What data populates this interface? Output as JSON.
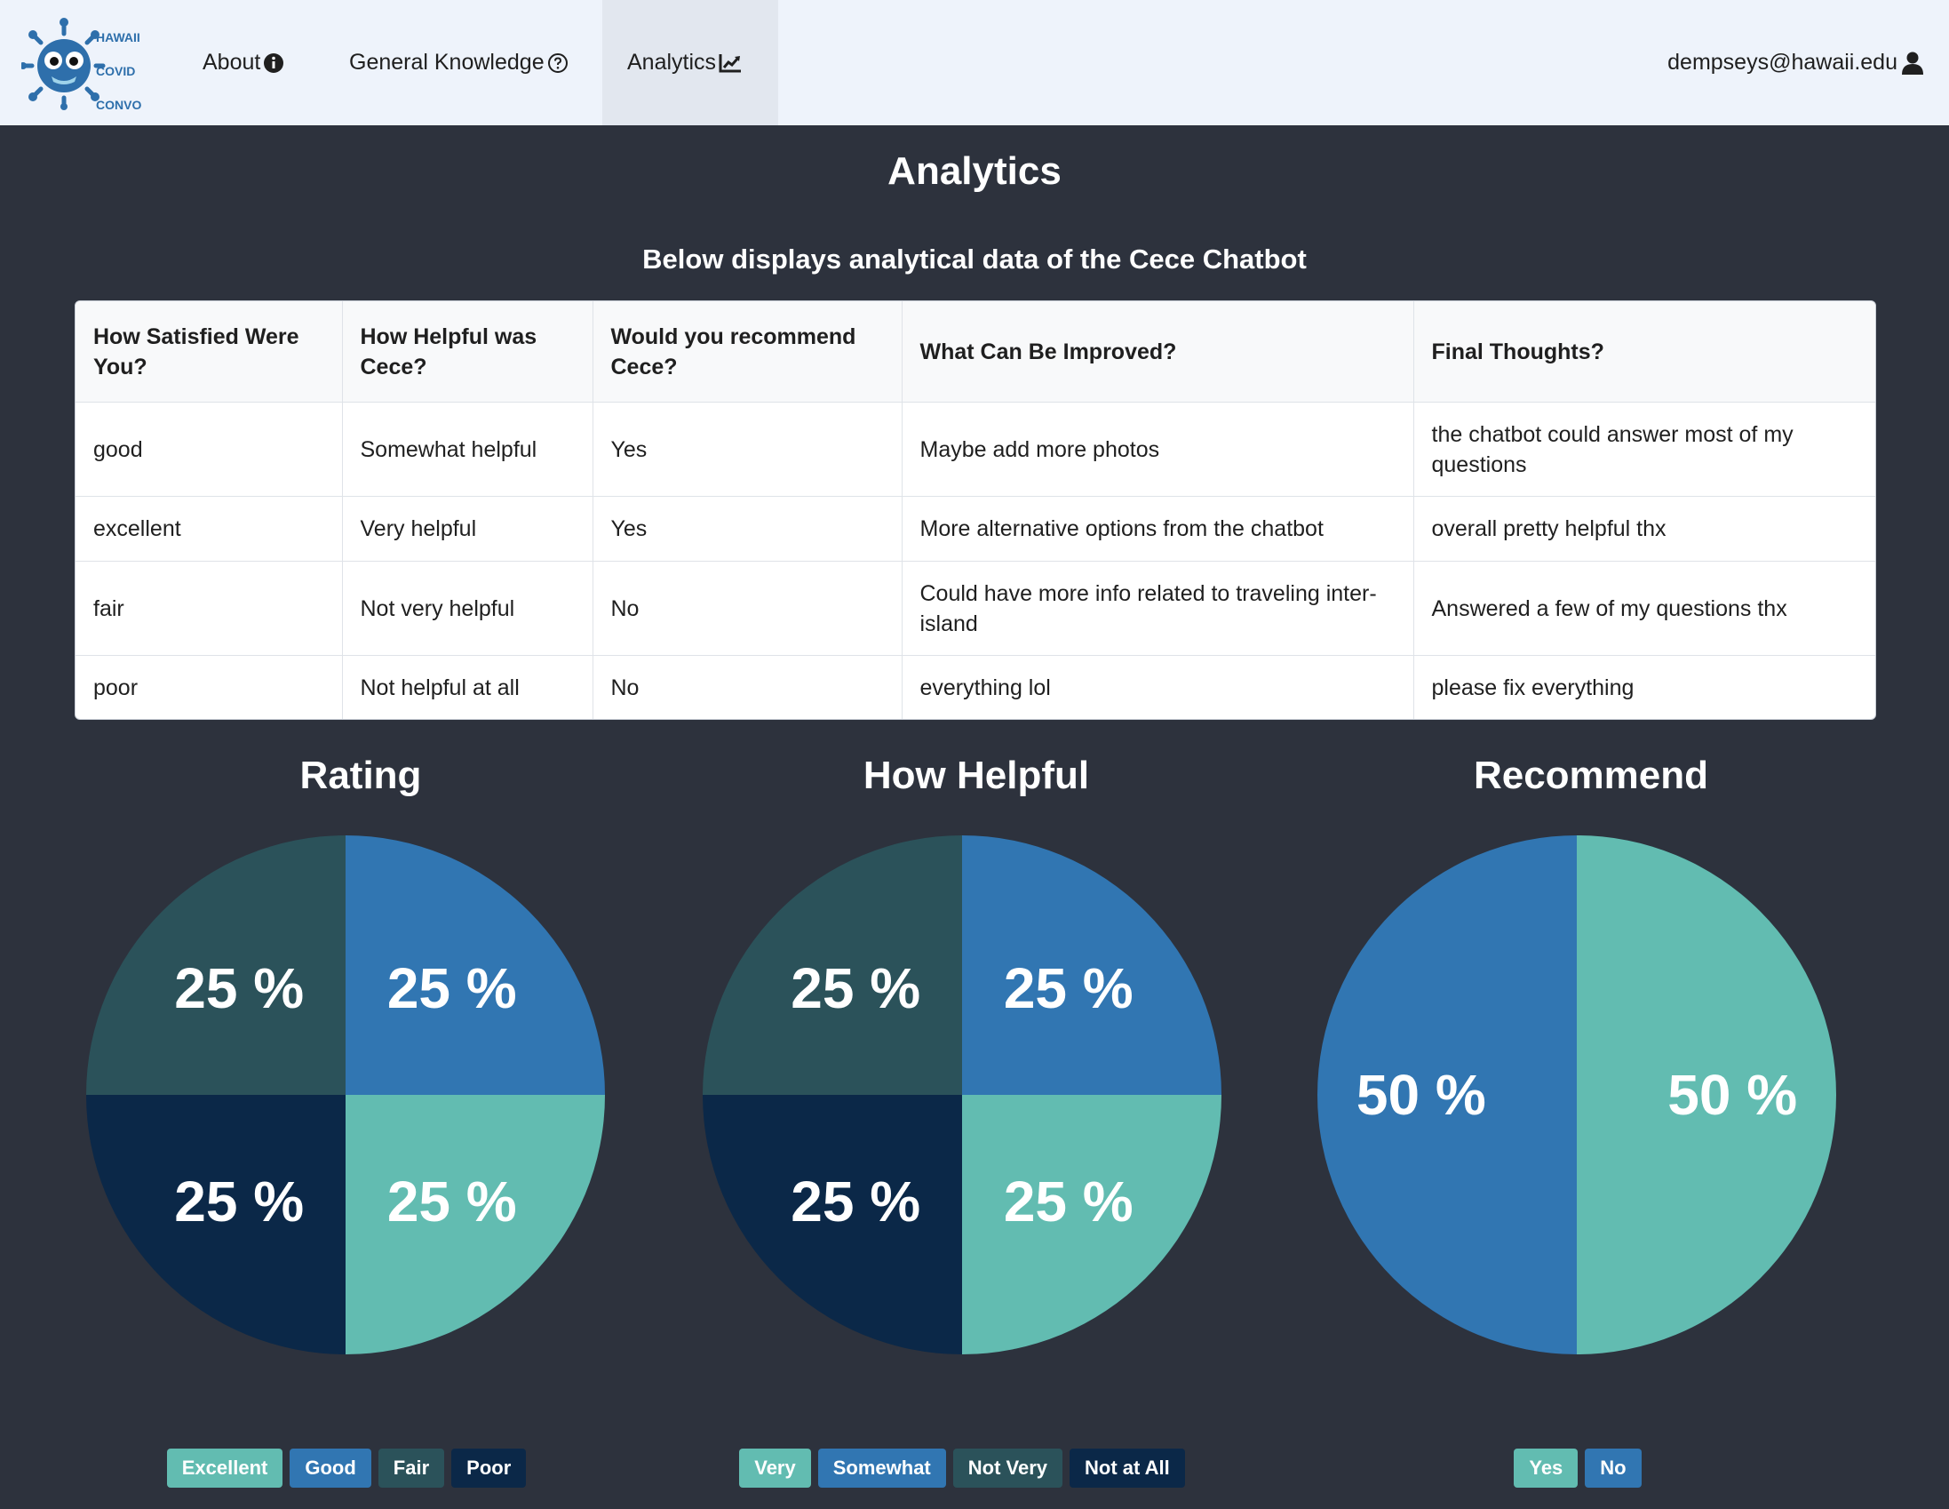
{
  "nav": {
    "logo_lines": [
      "HAWAII",
      "COVID",
      "CONVO"
    ],
    "items": [
      {
        "label": "About",
        "icon": "info-circle-icon"
      },
      {
        "label": "General Knowledge",
        "icon": "question-circle-icon"
      },
      {
        "label": "Analytics",
        "icon": "chart-line-icon"
      }
    ],
    "user": "dempseys@hawaii.edu"
  },
  "page": {
    "title": "Analytics",
    "subtitle": "Below displays analytical data of the Cece Chatbot"
  },
  "table": {
    "headers": [
      "How Satisfied Were You?",
      "How Helpful was Cece?",
      "Would you recommend Cece?",
      "What Can Be Improved?",
      "Final Thoughts?"
    ],
    "rows": [
      [
        "good",
        "Somewhat helpful",
        "Yes",
        "Maybe add more photos",
        "the chatbot could answer most of my questions"
      ],
      [
        "excellent",
        "Very helpful",
        "Yes",
        "More alternative options from the chatbot",
        "overall pretty helpful thx"
      ],
      [
        "fair",
        "Not very helpful",
        "No",
        "Could have more info related to traveling inter-island",
        "Answered a few of my questions thx"
      ],
      [
        "poor",
        "Not helpful at all",
        "No",
        "everything lol",
        "please fix everything"
      ]
    ]
  },
  "colors": {
    "teal": "#62bcb1",
    "blue": "#3176b2",
    "slate": "#2b525a",
    "navy": "#0b2848"
  },
  "chart_data": [
    {
      "type": "pie",
      "title": "Rating",
      "slices": [
        {
          "name": "Excellent",
          "value": 25,
          "label": "25 %",
          "color": "#62bcb1"
        },
        {
          "name": "Good",
          "value": 25,
          "label": "25 %",
          "color": "#3176b2"
        },
        {
          "name": "Fair",
          "value": 25,
          "label": "25 %",
          "color": "#2b525a"
        },
        {
          "name": "Poor",
          "value": 25,
          "label": "25 %",
          "color": "#0b2848"
        }
      ],
      "legend_placement": "bottom"
    },
    {
      "type": "pie",
      "title": "How Helpful",
      "slices": [
        {
          "name": "Very",
          "value": 25,
          "label": "25 %",
          "color": "#62bcb1"
        },
        {
          "name": "Somewhat",
          "value": 25,
          "label": "25 %",
          "color": "#3176b2"
        },
        {
          "name": "Not Very",
          "value": 25,
          "label": "25 %",
          "color": "#2b525a"
        },
        {
          "name": "Not at All",
          "value": 25,
          "label": "25 %",
          "color": "#0b2848"
        }
      ],
      "legend_placement": "bottom"
    },
    {
      "type": "pie",
      "title": "Recommend",
      "slices": [
        {
          "name": "Yes",
          "value": 50,
          "label": "50 %",
          "color": "#62bcb1"
        },
        {
          "name": "No",
          "value": 50,
          "label": "50 %",
          "color": "#3176b2"
        }
      ],
      "legend_placement": "bottom"
    }
  ]
}
